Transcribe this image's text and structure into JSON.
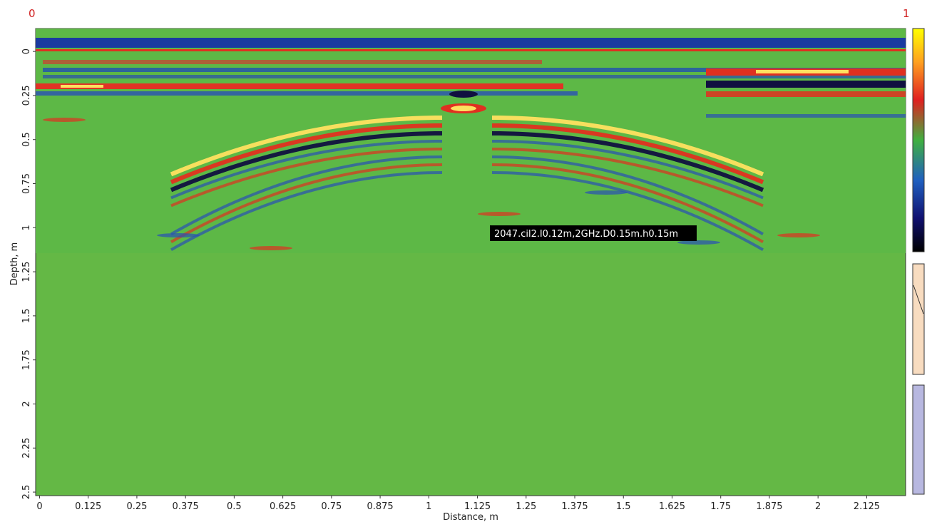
{
  "chart_data": {
    "type": "radargram",
    "scale_labels": [
      "0",
      "1"
    ],
    "xlabel": "Distance, m",
    "ylabel": "Depth, m",
    "annotation": "2047.cil2.l0.12m,2GHz.D0.15m.h0.15m",
    "xlim": [
      -0.01,
      2.225
    ],
    "ylim": [
      -0.13,
      2.52
    ],
    "xticks": [
      0,
      0.125,
      0.25,
      0.375,
      0.5,
      0.625,
      0.75,
      0.875,
      1,
      1.125,
      1.25,
      1.375,
      1.5,
      1.625,
      1.75,
      1.875,
      2,
      2.125
    ],
    "yticks": [
      0,
      0.25,
      0.5,
      0.75,
      1,
      1.25,
      1.5,
      1.75,
      2,
      2.25,
      2.5
    ]
  }
}
